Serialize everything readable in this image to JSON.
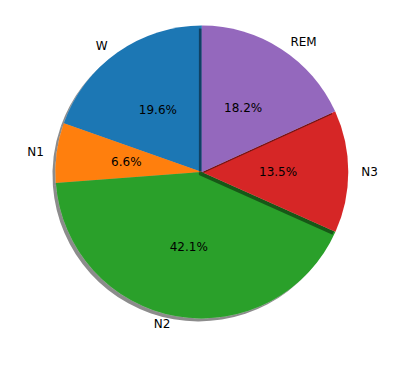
{
  "chart_data": {
    "type": "pie",
    "categories": [
      "W",
      "N1",
      "N2",
      "N3",
      "REM"
    ],
    "values": [
      19.6,
      6.6,
      42.1,
      13.5,
      18.2
    ],
    "value_labels": [
      "19.6%",
      "6.6%",
      "42.1%",
      "13.5%",
      "18.2%"
    ],
    "colors": [
      "#1f77b4",
      "#ff7f0e",
      "#2ca02c",
      "#d62728",
      "#9467bd"
    ],
    "data_labels": true
  }
}
